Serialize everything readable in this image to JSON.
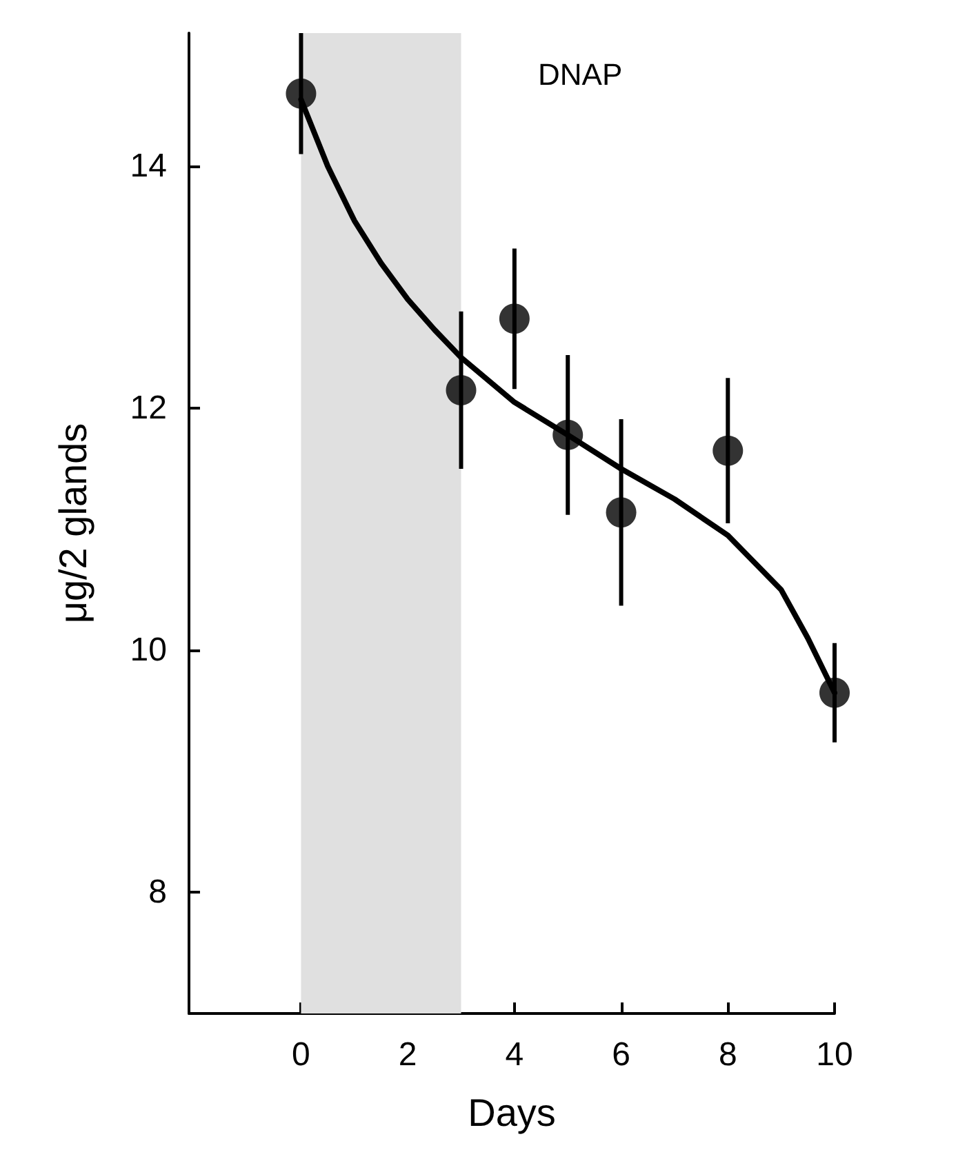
{
  "chart_data": {
    "type": "scatter",
    "title": "DNAP",
    "xlabel": "Days",
    "ylabel": "μg/2 glands",
    "xlim": [
      -2.1,
      10
    ],
    "xticks": [
      0,
      2,
      4,
      6,
      8,
      10
    ],
    "ylim": [
      7,
      15.1
    ],
    "yticks": [
      8,
      10,
      12,
      14
    ],
    "grid": false,
    "marker": "circle",
    "series": [
      {
        "color": "#000000",
        "x": [
          0,
          3,
          4,
          5,
          6,
          8,
          10
        ],
        "values": [
          14.6,
          12.15,
          12.74,
          11.78,
          11.14,
          11.65,
          9.65
        ],
        "errors": [
          0.5,
          0.65,
          0.58,
          0.66,
          0.77,
          0.6,
          0.41
        ]
      },
      {
        "type": "line",
        "color": "#000000",
        "marker": "none",
        "line_style": "solid",
        "x": [
          0,
          0.5,
          1,
          1.5,
          2,
          2.5,
          3,
          4,
          5,
          6,
          7,
          8,
          9,
          9.5,
          10
        ],
        "values": [
          14.55,
          14.0,
          13.55,
          13.2,
          12.9,
          12.65,
          12.42,
          12.05,
          11.78,
          11.5,
          11.25,
          10.95,
          10.5,
          10.1,
          9.65
        ]
      }
    ],
    "bands": [
      {
        "axis": "x",
        "from": 0,
        "to": 3,
        "color": "#e0e0e0"
      }
    ]
  }
}
